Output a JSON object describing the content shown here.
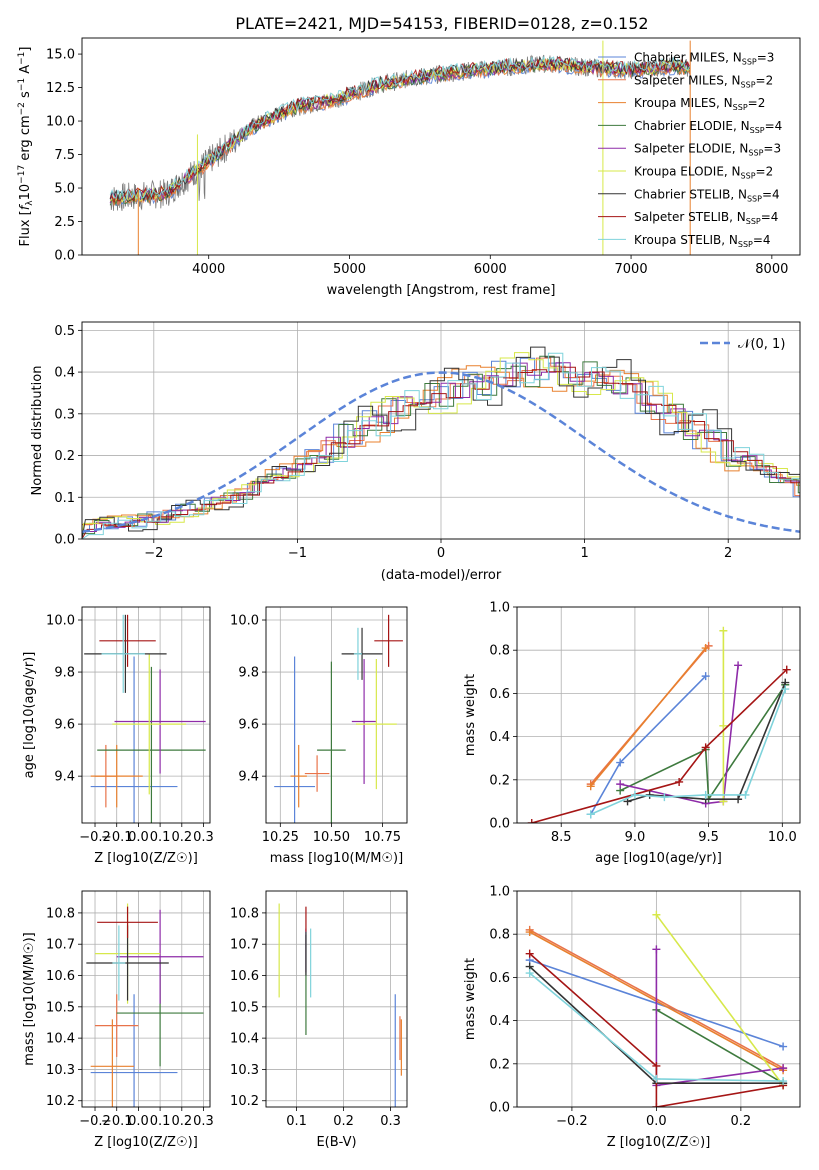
{
  "colors": {
    "chabrier_miles": "#5B84D8",
    "salpeter_miles": "#E8734A",
    "kroupa_miles": "#E8802E",
    "chabrier_elodie": "#3E7A3E",
    "salpeter_elodie": "#8E2BA8",
    "kroupa_elodie": "#D7E84A",
    "chabrier_stelib": "#333333",
    "salpeter_stelib": "#A51515",
    "kroupa_stelib": "#7FD3DB",
    "spectrum": "#7a7a7a",
    "normal": "#5B84D8",
    "grid": "#b0b0b0"
  },
  "chart_data": [
    {
      "type": "line",
      "title": "PLATE=2421, MJD=54153, FIBERID=0128, z=0.152",
      "xlabel": "wavelength [Angstrom, rest frame]",
      "ylabel_parts": [
        "Flux [",
        "f",
        "λ",
        "10",
        "−17",
        " erg cm",
        "−2",
        " s",
        "−1",
        " A",
        "−1",
        "]"
      ],
      "xlim": [
        3100,
        8200
      ],
      "ylim": [
        0,
        16.2
      ],
      "xticks": [
        "4000",
        "5000",
        "6000",
        "7000",
        "8000"
      ],
      "yticks": [
        "0.0",
        "2.5",
        "5.0",
        "7.5",
        "10.0",
        "12.5",
        "15.0"
      ],
      "spectrum_x": [
        3300,
        3700,
        4000,
        4300,
        4600,
        4900,
        5200,
        5500,
        5800,
        6100,
        6400,
        6700,
        7000,
        7300,
        7420
      ],
      "spectrum_y": [
        4.2,
        4.6,
        7.0,
        9.5,
        11.0,
        11.6,
        12.7,
        13.3,
        13.7,
        14.0,
        14.3,
        14.0,
        13.8,
        14.1,
        14.0
      ],
      "legend": [
        {
          "key": "chabrier_miles",
          "label": "Chabrier MILES, N",
          "sub": "SSP",
          "n": "=3"
        },
        {
          "key": "salpeter_miles",
          "label": "Salpeter MILES, N",
          "sub": "SSP",
          "n": "=2"
        },
        {
          "key": "kroupa_miles",
          "label": "Kroupa MILES, N",
          "sub": "SSP",
          "n": "=2"
        },
        {
          "key": "chabrier_elodie",
          "label": "Chabrier ELODIE, N",
          "sub": "SSP",
          "n": "=4"
        },
        {
          "key": "salpeter_elodie",
          "label": "Salpeter ELODIE, N",
          "sub": "SSP",
          "n": "=3"
        },
        {
          "key": "kroupa_elodie",
          "label": "Kroupa ELODIE, N",
          "sub": "SSP",
          "n": "=2"
        },
        {
          "key": "chabrier_stelib",
          "label": "Chabrier STELIB, N",
          "sub": "SSP",
          "n": "=4"
        },
        {
          "key": "salpeter_stelib",
          "label": "Salpeter STELIB, N",
          "sub": "SSP",
          "n": "=4"
        },
        {
          "key": "kroupa_stelib",
          "label": "Kroupa STELIB, N",
          "sub": "SSP",
          "n": "=4"
        }
      ]
    },
    {
      "type": "histogram",
      "xlabel": "(data-model)/error",
      "ylabel": "Normed distribution",
      "xlim": [
        -2.5,
        2.5
      ],
      "ylim": [
        0,
        0.52
      ],
      "xticks": [
        "−2",
        "−1",
        "0",
        "1",
        "2"
      ],
      "yticks": [
        "0.0",
        "0.1",
        "0.2",
        "0.3",
        "0.4",
        "0.5"
      ],
      "legend_label": "𝒩(0, 1)",
      "bin_edges_start": -2.5,
      "bin_width": 0.1,
      "base_heights": [
        0.025,
        0.03,
        0.035,
        0.04,
        0.045,
        0.05,
        0.06,
        0.07,
        0.08,
        0.09,
        0.1,
        0.11,
        0.13,
        0.15,
        0.16,
        0.18,
        0.2,
        0.22,
        0.24,
        0.26,
        0.28,
        0.3,
        0.32,
        0.33,
        0.34,
        0.35,
        0.36,
        0.37,
        0.38,
        0.39,
        0.4,
        0.4,
        0.41,
        0.4,
        0.4,
        0.39,
        0.38,
        0.37,
        0.35,
        0.33,
        0.31,
        0.29,
        0.27,
        0.25,
        0.23,
        0.21,
        0.19,
        0.17,
        0.15,
        0.13,
        0.11,
        0.1,
        0.09,
        0.08,
        0.07,
        0.06,
        0.05,
        0.05,
        0.04,
        0.04
      ],
      "jitter": [
        0.03,
        -0.02,
        0.04,
        -0.03,
        0.02,
        -0.04,
        0.05,
        -0.01,
        0.03
      ]
    },
    {
      "type": "errorbar",
      "xlabel": "Z [log10(Z/Z☉)]",
      "ylabel": "age  [log10(age/yr)]",
      "xlim": [
        -0.26,
        0.33
      ],
      "ylim": [
        9.22,
        10.05
      ],
      "xticks": [
        -0.2,
        -0.1,
        0.0,
        0.1,
        0.2,
        0.3
      ],
      "xtick_labels": [
        "−0.2",
        "−0.1",
        "0.0",
        "0.1",
        "0.2",
        "0.3"
      ],
      "yticks": [
        9.4,
        9.6,
        9.8,
        10.0
      ],
      "ytick_labels": [
        "9.4",
        "9.6",
        "9.8",
        "10.0"
      ],
      "points": [
        {
          "key": "chabrier_miles",
          "x": -0.02,
          "y": 9.36,
          "xe": 0.2,
          "ye": 0.5
        },
        {
          "key": "salpeter_miles",
          "x": -0.15,
          "y": 9.4,
          "xe": 0.05,
          "ye": 0.12
        },
        {
          "key": "kroupa_miles",
          "x": -0.1,
          "y": 9.4,
          "xe": 0.12,
          "ye": 0.12
        },
        {
          "key": "chabrier_elodie",
          "x": 0.06,
          "y": 9.5,
          "xe": 0.25,
          "ye": 0.32
        },
        {
          "key": "salpeter_elodie",
          "x": 0.1,
          "y": 9.61,
          "xe": 0.21,
          "ye": 0.2
        },
        {
          "key": "kroupa_elodie",
          "x": 0.05,
          "y": 9.6,
          "xe": 0.17,
          "ye": 0.27
        },
        {
          "key": "chabrier_stelib",
          "x": -0.06,
          "y": 9.87,
          "xe": 0.19,
          "ye": 0.15
        },
        {
          "key": "salpeter_stelib",
          "x": -0.05,
          "y": 9.92,
          "xe": 0.13,
          "ye": 0.1
        },
        {
          "key": "kroupa_stelib",
          "x": -0.07,
          "y": 9.87,
          "xe": 0.1,
          "ye": 0.15
        }
      ]
    },
    {
      "type": "errorbar",
      "xlabel": "mass [log10(M/M☉)]",
      "ylabel": "",
      "xlim": [
        10.18,
        10.87
      ],
      "ylim": [
        9.22,
        10.05
      ],
      "xticks": [
        10.25,
        10.5,
        10.75
      ],
      "xtick_labels": [
        "10.25",
        "10.50",
        "10.75"
      ],
      "yticks": [
        9.4,
        9.6,
        9.8,
        10.0
      ],
      "ytick_labels": [
        "9.4",
        "9.6",
        "9.8",
        "10.0"
      ],
      "points": [
        {
          "key": "chabrier_miles",
          "x": 10.32,
          "y": 9.36,
          "xe": 0.1,
          "ye": 0.5
        },
        {
          "key": "salpeter_miles",
          "x": 10.43,
          "y": 9.41,
          "xe": 0.06,
          "ye": 0.07
        },
        {
          "key": "kroupa_miles",
          "x": 10.34,
          "y": 9.4,
          "xe": 0.04,
          "ye": 0.12
        },
        {
          "key": "chabrier_elodie",
          "x": 10.5,
          "y": 9.5,
          "xe": 0.07,
          "ye": 0.34
        },
        {
          "key": "salpeter_elodie",
          "x": 10.66,
          "y": 9.61,
          "xe": 0.06,
          "ye": 0.24
        },
        {
          "key": "kroupa_elodie",
          "x": 10.72,
          "y": 9.6,
          "xe": 0.1,
          "ye": 0.25
        },
        {
          "key": "chabrier_stelib",
          "x": 10.65,
          "y": 9.87,
          "xe": 0.1,
          "ye": 0.1
        },
        {
          "key": "salpeter_stelib",
          "x": 10.78,
          "y": 9.92,
          "xe": 0.07,
          "ye": 0.1
        },
        {
          "key": "kroupa_stelib",
          "x": 10.63,
          "y": 9.87,
          "xe": 0.02,
          "ye": 0.1
        }
      ]
    },
    {
      "type": "line",
      "xlabel": "age  [log10(age/yr)]",
      "ylabel": "mass weight",
      "xlim": [
        8.2,
        10.12
      ],
      "ylim": [
        0,
        1
      ],
      "xticks": [
        8.5,
        9.0,
        9.5,
        10.0
      ],
      "xtick_labels": [
        "8.5",
        "9.0",
        "9.5",
        "10.0"
      ],
      "yticks": [
        0,
        0.2,
        0.4,
        0.6,
        0.8,
        1.0
      ],
      "ytick_labels": [
        "0.0",
        "0.2",
        "0.4",
        "0.6",
        "0.8",
        "1.0"
      ],
      "series": [
        {
          "key": "chabrier_miles",
          "x": [
            8.7,
            8.9,
            9.48
          ],
          "y": [
            0.04,
            0.28,
            0.68
          ]
        },
        {
          "key": "salpeter_miles",
          "x": [
            8.7,
            9.5
          ],
          "y": [
            0.18,
            0.82
          ]
        },
        {
          "key": "kroupa_miles",
          "x": [
            8.7,
            9.48
          ],
          "y": [
            0.17,
            0.81
          ]
        },
        {
          "key": "chabrier_elodie",
          "x": [
            8.9,
            9.48,
            9.5,
            10.02
          ],
          "y": [
            0.15,
            0.34,
            0.11,
            0.64
          ]
        },
        {
          "key": "salpeter_elodie",
          "x": [
            8.9,
            9.48,
            9.6,
            9.7
          ],
          "y": [
            0.18,
            0.09,
            0.1,
            0.73
          ]
        },
        {
          "key": "kroupa_elodie",
          "x": [
            9.6,
            9.6,
            9.6
          ],
          "y": [
            0.89,
            0.45,
            0.1
          ]
        },
        {
          "key": "chabrier_stelib",
          "x": [
            8.95,
            9.1,
            9.48,
            9.7,
            10.02
          ],
          "y": [
            0.1,
            0.13,
            0.11,
            0.11,
            0.65
          ]
        },
        {
          "key": "salpeter_stelib",
          "x": [
            8.3,
            9.3,
            9.48,
            10.03
          ],
          "y": [
            0.0,
            0.19,
            0.35,
            0.71
          ]
        },
        {
          "key": "kroupa_stelib",
          "x": [
            8.7,
            9.0,
            9.2,
            9.48,
            9.75,
            10.02
          ],
          "y": [
            0.04,
            0.13,
            0.12,
            0.13,
            0.13,
            0.62
          ]
        }
      ]
    },
    {
      "type": "errorbar",
      "xlabel": "Z [log10(Z/Z☉)]",
      "ylabel": "mass [log10(M/M☉)]",
      "xlim": [
        -0.26,
        0.33
      ],
      "ylim": [
        10.18,
        10.87
      ],
      "xticks": [
        -0.2,
        -0.1,
        0.0,
        0.1,
        0.2,
        0.3
      ],
      "xtick_labels": [
        "−0.2",
        "−0.1",
        "0.0",
        "0.1",
        "0.2",
        "0.3"
      ],
      "yticks": [
        10.2,
        10.3,
        10.4,
        10.5,
        10.6,
        10.7,
        10.8
      ],
      "ytick_labels": [
        "10.2",
        "10.3",
        "10.4",
        "10.5",
        "10.6",
        "10.7",
        "10.8"
      ],
      "points": [
        {
          "key": "chabrier_miles",
          "x": -0.02,
          "y": 10.29,
          "xe": 0.2,
          "ye": 0.25
        },
        {
          "key": "salpeter_miles",
          "x": -0.1,
          "y": 10.44,
          "xe": 0.1,
          "ye": 0.1
        },
        {
          "key": "kroupa_miles",
          "x": -0.12,
          "y": 10.31,
          "xe": 0.1,
          "ye": 0.15
        },
        {
          "key": "chabrier_elodie",
          "x": 0.1,
          "y": 10.48,
          "xe": 0.2,
          "ye": 0.17
        },
        {
          "key": "salpeter_elodie",
          "x": 0.1,
          "y": 10.66,
          "xe": 0.2,
          "ye": 0.15
        },
        {
          "key": "kroupa_elodie",
          "x": -0.05,
          "y": 10.67,
          "xe": 0.15,
          "ye": 0.16
        },
        {
          "key": "chabrier_stelib",
          "x": -0.05,
          "y": 10.64,
          "xe": 0.19,
          "ye": 0.12
        },
        {
          "key": "salpeter_stelib",
          "x": -0.05,
          "y": 10.77,
          "xe": 0.14,
          "ye": 0.05
        },
        {
          "key": "kroupa_stelib",
          "x": -0.09,
          "y": 10.64,
          "xe": 0.03,
          "ye": 0.12
        }
      ]
    },
    {
      "type": "errorbar",
      "xlabel": "E(B-V)",
      "ylabel": "",
      "xlim": [
        0.035,
        0.335
      ],
      "ylim": [
        10.18,
        10.87
      ],
      "xticks": [
        0.1,
        0.2,
        0.3
      ],
      "xtick_labels": [
        "0.1",
        "0.2",
        "0.3"
      ],
      "yticks": [
        10.2,
        10.3,
        10.4,
        10.5,
        10.6,
        10.7,
        10.8
      ],
      "ytick_labels": [
        "10.2",
        "10.3",
        "10.4",
        "10.5",
        "10.6",
        "10.7",
        "10.8"
      ],
      "points": [
        {
          "key": "chabrier_miles",
          "x": 0.31,
          "y": 10.29,
          "xe": 0,
          "ye": 0.25
        },
        {
          "key": "salpeter_miles",
          "x": 0.32,
          "y": 10.4,
          "xe": 0,
          "ye": 0.07
        },
        {
          "key": "kroupa_miles",
          "x": 0.323,
          "y": 10.37,
          "xe": 0,
          "ye": 0.09
        },
        {
          "key": "chabrier_elodie",
          "x": 0.12,
          "y": 10.57,
          "xe": 0,
          "ye": 0.16
        },
        {
          "key": "salpeter_elodie",
          "x": 0.12,
          "y": 10.68,
          "xe": 0,
          "ye": 0.07
        },
        {
          "key": "kroupa_elodie",
          "x": 0.063,
          "y": 10.68,
          "xe": 0,
          "ye": 0.15
        },
        {
          "key": "chabrier_stelib",
          "x": 0.12,
          "y": 10.67,
          "xe": 0,
          "ye": 0.07
        },
        {
          "key": "salpeter_stelib",
          "x": 0.12,
          "y": 10.78,
          "xe": 0,
          "ye": 0.04
        },
        {
          "key": "kroupa_stelib",
          "x": 0.13,
          "y": 10.64,
          "xe": 0,
          "ye": 0.11
        }
      ]
    },
    {
      "type": "line",
      "xlabel": "Z [log10(Z/Z☉)]",
      "ylabel": "mass weight",
      "xlim": [
        -0.33,
        0.34
      ],
      "ylim": [
        0,
        1
      ],
      "xticks": [
        -0.2,
        0.0,
        0.2
      ],
      "xtick_labels": [
        "−0.2",
        "0.0",
        "0.2"
      ],
      "yticks": [
        0,
        0.2,
        0.4,
        0.6,
        0.8,
        1.0
      ],
      "ytick_labels": [
        "0.0",
        "0.2",
        "0.4",
        "0.6",
        "0.8",
        "1.0"
      ],
      "series": [
        {
          "key": "chabrier_miles",
          "x": [
            -0.3,
            0.3
          ],
          "y": [
            0.68,
            0.28
          ]
        },
        {
          "key": "salpeter_miles",
          "x": [
            -0.3,
            0.3
          ],
          "y": [
            0.82,
            0.18
          ]
        },
        {
          "key": "kroupa_miles",
          "x": [
            -0.3,
            0.3
          ],
          "y": [
            0.81,
            0.17
          ]
        },
        {
          "key": "chabrier_elodie",
          "x": [
            0.0,
            0.3
          ],
          "y": [
            0.45,
            0.11
          ]
        },
        {
          "key": "salpeter_elodie",
          "x": [
            0.0,
            0.0,
            0.3
          ],
          "y": [
            0.73,
            0.1,
            0.18
          ]
        },
        {
          "key": "kroupa_elodie",
          "x": [
            0.0,
            0.3
          ],
          "y": [
            0.89,
            0.1
          ]
        },
        {
          "key": "chabrier_stelib",
          "x": [
            -0.3,
            0.0,
            0.3
          ],
          "y": [
            0.65,
            0.11,
            0.11
          ]
        },
        {
          "key": "salpeter_stelib",
          "x": [
            -0.3,
            0.0,
            0.0,
            0.3
          ],
          "y": [
            0.71,
            0.19,
            0.0,
            0.1
          ]
        },
        {
          "key": "kroupa_stelib",
          "x": [
            -0.3,
            0.0,
            0.3
          ],
          "y": [
            0.62,
            0.13,
            0.12
          ]
        }
      ]
    }
  ]
}
